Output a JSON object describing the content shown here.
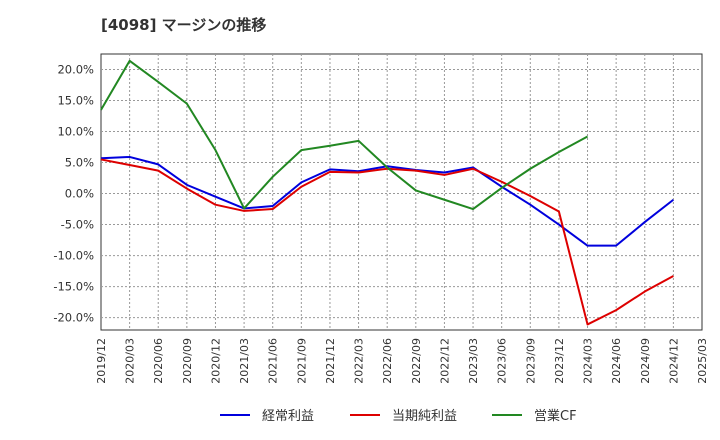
{
  "chart_data": {
    "type": "line",
    "title": "[4098]  マージンの推移",
    "xlabel": "",
    "ylabel": "",
    "ylim": [
      -22,
      22.5
    ],
    "yticks": [
      20,
      15,
      10,
      5,
      0,
      -5,
      -10,
      -15,
      -20
    ],
    "ytick_labels": [
      "20.0%",
      "15.0%",
      "10.0%",
      "5.0%",
      "0.0%",
      "-5.0%",
      "-10.0%",
      "-15.0%",
      "-20.0%"
    ],
    "categories": [
      "2019/12",
      "2020/03",
      "2020/06",
      "2020/09",
      "2020/12",
      "2021/03",
      "2021/06",
      "2021/09",
      "2021/12",
      "2022/03",
      "2022/06",
      "2022/09",
      "2022/12",
      "2023/03",
      "2023/06",
      "2023/09",
      "2023/12",
      "2024/03",
      "2024/06",
      "2024/09",
      "2024/12",
      "2025/03"
    ],
    "grid": true,
    "legend_position": "bottom",
    "series": [
      {
        "name": "経常利益",
        "color": "#0000dd",
        "values": [
          5.7,
          5.9,
          4.7,
          1.4,
          -0.5,
          -2.4,
          -2.0,
          1.8,
          3.9,
          3.6,
          4.4,
          3.8,
          3.4,
          4.2,
          1.1,
          -1.8,
          -5.0,
          -8.4,
          -8.4,
          -4.6,
          -1.0,
          null
        ]
      },
      {
        "name": "当期純利益",
        "color": "#dd0000",
        "values": [
          5.5,
          4.6,
          3.7,
          0.8,
          -1.8,
          -2.8,
          -2.5,
          1.1,
          3.5,
          3.4,
          4.0,
          3.7,
          3.0,
          4.0,
          1.9,
          -0.4,
          -2.9,
          -21.1,
          -18.8,
          -15.8,
          -13.3,
          null
        ]
      },
      {
        "name": "営業CF",
        "color": "#228822",
        "values": [
          13.5,
          21.4,
          18.0,
          14.5,
          7.0,
          -2.4,
          2.7,
          7.0,
          7.7,
          8.5,
          4.2,
          0.5,
          -1.0,
          -2.5,
          0.9,
          4.0,
          6.7,
          9.2,
          null,
          null,
          null,
          null
        ]
      }
    ]
  }
}
